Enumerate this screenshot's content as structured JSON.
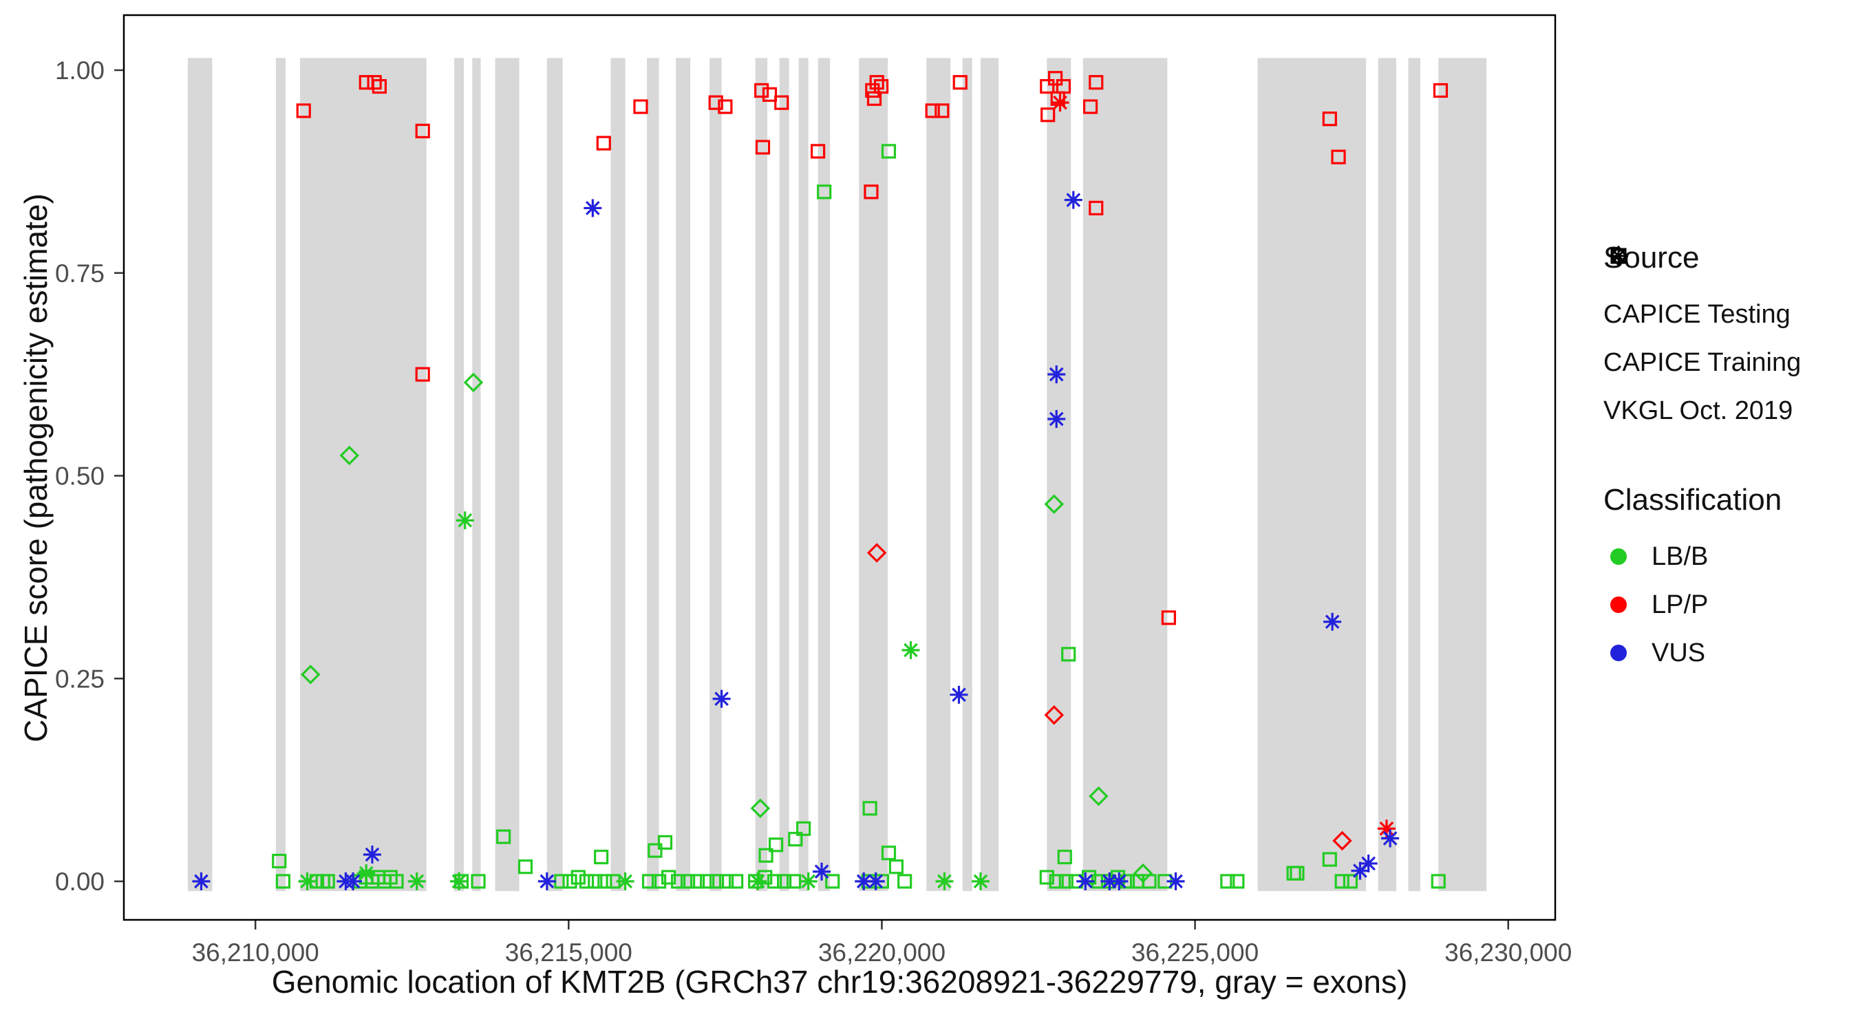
{
  "chart_data": {
    "type": "scatter",
    "title": "",
    "xlabel": "Genomic location of KMT2B (GRCh37 chr19:36208921-36229779, gray = exons)",
    "ylabel": "CAPICE score (pathogenicity estimate)",
    "xlim": [
      36207900,
      36230750
    ],
    "ylim": [
      -0.04,
      1.04
    ],
    "grid": false,
    "legend_position": "right",
    "x_ticks": [
      {
        "value": 36210000,
        "label": "36,210,000"
      },
      {
        "value": 36215000,
        "label": "36,215,000"
      },
      {
        "value": 36220000,
        "label": "36,220,000"
      },
      {
        "value": 36225000,
        "label": "36,225,000"
      },
      {
        "value": 36230000,
        "label": "36,230,000"
      }
    ],
    "y_ticks": [
      {
        "value": 0.0,
        "label": "0.00"
      },
      {
        "value": 0.25,
        "label": "0.25"
      },
      {
        "value": 0.5,
        "label": "0.50"
      },
      {
        "value": 0.75,
        "label": "0.75"
      },
      {
        "value": 1.0,
        "label": "1.00"
      }
    ],
    "exon_color": "#d8d8d8",
    "exons": [
      [
        36208921,
        36209310
      ],
      [
        36210327,
        36210481
      ],
      [
        36210712,
        36212731
      ],
      [
        36213173,
        36213327
      ],
      [
        36213462,
        36213596
      ],
      [
        36213827,
        36214212
      ],
      [
        36214654,
        36214904
      ],
      [
        36215673,
        36215904
      ],
      [
        36216250,
        36216442
      ],
      [
        36216712,
        36216942
      ],
      [
        36217250,
        36217442
      ],
      [
        36217981,
        36218173
      ],
      [
        36218365,
        36218519
      ],
      [
        36218673,
        36218827
      ],
      [
        36218981,
        36219173
      ],
      [
        36219635,
        36220096
      ],
      [
        36220712,
        36221096
      ],
      [
        36221288,
        36221442
      ],
      [
        36221577,
        36221865
      ],
      [
        36222635,
        36223019
      ],
      [
        36223212,
        36224558
      ],
      [
        36226000,
        36227731
      ],
      [
        36227923,
        36228212
      ],
      [
        36228404,
        36228596
      ],
      [
        36228885,
        36229654
      ]
    ],
    "shape_by_source": {
      "CAPICE Testing": "diamond",
      "CAPICE Training": "square",
      "VKGL Oct. 2019": "asterisk"
    },
    "color_by_class": {
      "LB/B": "#22cc22",
      "LP/P": "#ff0000",
      "VUS": "#2222dd"
    },
    "series": [
      {
        "source": "CAPICE Testing",
        "class": "LB/B",
        "points": [
          [
            36210880,
            0.255
          ],
          [
            36211500,
            0.525
          ],
          [
            36213480,
            0.615
          ],
          [
            36218060,
            0.09
          ],
          [
            36222750,
            0.465
          ],
          [
            36223460,
            0.105
          ],
          [
            36224170,
            0.01
          ]
        ]
      },
      {
        "source": "CAPICE Testing",
        "class": "LP/P",
        "points": [
          [
            36219920,
            0.405
          ],
          [
            36222750,
            0.205
          ],
          [
            36227350,
            0.05
          ]
        ]
      },
      {
        "source": "CAPICE Training",
        "class": "LB/B",
        "points": [
          [
            36219080,
            0.85
          ],
          [
            36220110,
            0.9
          ],
          [
            36222980,
            0.28
          ],
          [
            36210380,
            0.025
          ],
          [
            36213960,
            0.055
          ],
          [
            36214310,
            0.018
          ],
          [
            36215520,
            0.03
          ],
          [
            36216380,
            0.038
          ],
          [
            36216540,
            0.048
          ],
          [
            36218150,
            0.032
          ],
          [
            36218310,
            0.045
          ],
          [
            36218620,
            0.052
          ],
          [
            36218750,
            0.065
          ],
          [
            36219810,
            0.09
          ],
          [
            36220110,
            0.035
          ],
          [
            36220230,
            0.018
          ],
          [
            36222920,
            0.03
          ],
          [
            36226630,
            0.01
          ],
          [
            36227150,
            0.027
          ],
          [
            36210442,
            0
          ],
          [
            36210981,
            0
          ],
          [
            36211077,
            0
          ],
          [
            36211154,
            0
          ],
          [
            36211673,
            0
          ],
          [
            36211769,
            0.005
          ],
          [
            36211865,
            0
          ],
          [
            36211962,
            0.005
          ],
          [
            36212058,
            0
          ],
          [
            36212154,
            0.005
          ],
          [
            36212250,
            0
          ],
          [
            36213288,
            0
          ],
          [
            36213558,
            0
          ],
          [
            36214885,
            0
          ],
          [
            36215019,
            0
          ],
          [
            36215154,
            0.005
          ],
          [
            36215288,
            0
          ],
          [
            36215423,
            0
          ],
          [
            36215577,
            0
          ],
          [
            36215712,
            0
          ],
          [
            36216288,
            0
          ],
          [
            36216442,
            0
          ],
          [
            36216596,
            0.005
          ],
          [
            36216750,
            0
          ],
          [
            36216904,
            0
          ],
          [
            36217058,
            0
          ],
          [
            36217212,
            0
          ],
          [
            36217365,
            0
          ],
          [
            36217519,
            0
          ],
          [
            36217673,
            0
          ],
          [
            36217981,
            0
          ],
          [
            36218135,
            0.005
          ],
          [
            36218288,
            0
          ],
          [
            36218442,
            0
          ],
          [
            36218596,
            0
          ],
          [
            36219212,
            0
          ],
          [
            36219788,
            0
          ],
          [
            36220000,
            0
          ],
          [
            36220365,
            0
          ],
          [
            36222635,
            0.005
          ],
          [
            36222788,
            0
          ],
          [
            36222942,
            0
          ],
          [
            36223096,
            0
          ],
          [
            36223308,
            0.005
          ],
          [
            36223462,
            0
          ],
          [
            36223615,
            0
          ],
          [
            36223769,
            0.005
          ],
          [
            36223923,
            0
          ],
          [
            36224077,
            0
          ],
          [
            36224269,
            0
          ],
          [
            36224519,
            0
          ],
          [
            36225519,
            0
          ],
          [
            36225673,
            0
          ],
          [
            36226577,
            0.01
          ],
          [
            36227346,
            0
          ],
          [
            36227481,
            0
          ],
          [
            36228885,
            0
          ]
        ]
      },
      {
        "source": "CAPICE Training",
        "class": "LP/P",
        "points": [
          [
            36210770,
            0.95
          ],
          [
            36211770,
            0.985
          ],
          [
            36211900,
            0.985
          ],
          [
            36211980,
            0.98
          ],
          [
            36212670,
            0.925
          ],
          [
            36212670,
            0.625
          ],
          [
            36215560,
            0.91
          ],
          [
            36216150,
            0.955
          ],
          [
            36217350,
            0.96
          ],
          [
            36217500,
            0.955
          ],
          [
            36218080,
            0.975
          ],
          [
            36218210,
            0.97
          ],
          [
            36218100,
            0.905
          ],
          [
            36218400,
            0.96
          ],
          [
            36218980,
            0.9
          ],
          [
            36219830,
            0.85
          ],
          [
            36219850,
            0.975
          ],
          [
            36219920,
            0.985
          ],
          [
            36219990,
            0.98
          ],
          [
            36219880,
            0.965
          ],
          [
            36220810,
            0.95
          ],
          [
            36220960,
            0.95
          ],
          [
            36221250,
            0.985
          ],
          [
            36222640,
            0.98
          ],
          [
            36222770,
            0.99
          ],
          [
            36222900,
            0.98
          ],
          [
            36222650,
            0.945
          ],
          [
            36222810,
            0.965
          ],
          [
            36223330,
            0.955
          ],
          [
            36223420,
            0.985
          ],
          [
            36223420,
            0.83
          ],
          [
            36224580,
            0.325
          ],
          [
            36227150,
            0.94
          ],
          [
            36227290,
            0.893
          ],
          [
            36228920,
            0.975
          ]
        ]
      },
      {
        "source": "VKGL Oct. 2019",
        "class": "LB/B",
        "points": [
          [
            36210827,
            0
          ],
          [
            36211769,
            0.01
          ],
          [
            36212577,
            0
          ],
          [
            36213250,
            0
          ],
          [
            36213346,
            0.445
          ],
          [
            36215904,
            0
          ],
          [
            36218020,
            0
          ],
          [
            36218827,
            0
          ],
          [
            36220462,
            0.285
          ],
          [
            36221000,
            0
          ],
          [
            36221577,
            0
          ]
        ]
      },
      {
        "source": "VKGL Oct. 2019",
        "class": "LP/P",
        "points": [
          [
            36222846,
            0.96
          ],
          [
            36228058,
            0.065
          ]
        ]
      },
      {
        "source": "VKGL Oct. 2019",
        "class": "VUS",
        "points": [
          [
            36209135,
            0
          ],
          [
            36211442,
            0
          ],
          [
            36211558,
            0
          ],
          [
            36211865,
            0.033
          ],
          [
            36214654,
            0
          ],
          [
            36215385,
            0.83
          ],
          [
            36217442,
            0.225
          ],
          [
            36219040,
            0.012
          ],
          [
            36219712,
            0
          ],
          [
            36219904,
            0
          ],
          [
            36221231,
            0.23
          ],
          [
            36222788,
            0.625
          ],
          [
            36222788,
            0.57
          ],
          [
            36223058,
            0.84
          ],
          [
            36223250,
            0
          ],
          [
            36223635,
            0
          ],
          [
            36223788,
            0
          ],
          [
            36224692,
            0
          ],
          [
            36227192,
            0.32
          ],
          [
            36227635,
            0.013
          ],
          [
            36227769,
            0.022
          ],
          [
            36228115,
            0.053
          ]
        ]
      }
    ]
  },
  "legend": {
    "source": {
      "title": "Source",
      "items": [
        {
          "label": "CAPICE Testing",
          "shape": "diamond"
        },
        {
          "label": "CAPICE Training",
          "shape": "square"
        },
        {
          "label": "VKGL Oct. 2019",
          "shape": "asterisk"
        }
      ]
    },
    "classification": {
      "title": "Classification",
      "items": [
        {
          "label": "LB/B",
          "color": "#22cc22"
        },
        {
          "label": "LP/P",
          "color": "#ff0000"
        },
        {
          "label": "VUS",
          "color": "#2222dd"
        }
      ]
    }
  }
}
